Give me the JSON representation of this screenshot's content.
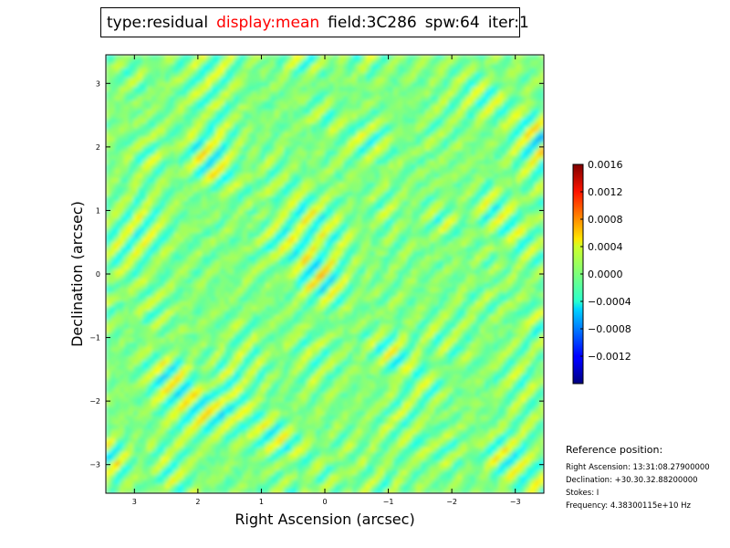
{
  "title_bar": {
    "type_text": "type:residual",
    "display_text": "display:mean",
    "field_text": "field:3C286",
    "spw_text": "spw:64",
    "iter_text": "iter:1",
    "highlight_color": "#ff0000"
  },
  "chart_data": {
    "type": "heatmap",
    "xlabel": "Right Ascension (arcsec)",
    "ylabel": "Declination (arcsec)",
    "xlim": [
      3.45,
      -3.45
    ],
    "ylim": [
      -3.45,
      3.45
    ],
    "x_ticks": [
      3,
      2,
      1,
      0,
      -1,
      -2,
      -3
    ],
    "x_tick_labels": [
      "3",
      "2",
      "1",
      "0",
      "−1",
      "−2",
      "−3"
    ],
    "y_ticks": [
      3,
      2,
      1,
      0,
      -1,
      -2,
      -3
    ],
    "y_tick_labels": [
      "3",
      "2",
      "1",
      "0",
      "−1",
      "−2",
      "−3"
    ],
    "colormap": "jet",
    "colorbar": {
      "vmin": -0.0016,
      "vmax": 0.0016,
      "ticks": [
        0.0016,
        0.0012,
        0.0008,
        0.0004,
        0.0,
        -0.0004,
        -0.0008,
        -0.0012
      ],
      "tick_labels": [
        "0.0016",
        "0.0012",
        "0.0008",
        "0.0004",
        "0.0000",
        "−0.0004",
        "−0.0008",
        "−0.0012"
      ]
    }
  },
  "reference": {
    "title": "Reference position:",
    "right_ascension": "Right Ascension: 13:31:08.27900000",
    "declination": "Declination: +30.30.32.88200000",
    "stokes": "Stokes: I",
    "frequency": "Frequency: 4.38300115e+10 Hz"
  }
}
